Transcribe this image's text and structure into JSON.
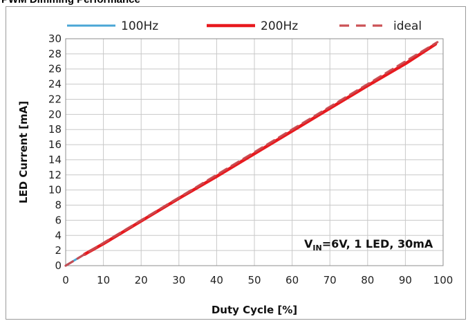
{
  "page": {
    "title": "PWM Dimming Performance"
  },
  "chart_data": {
    "type": "line",
    "title": "",
    "xlabel": "Duty Cycle [%]",
    "ylabel": "LED Current [mA]",
    "xlim": [
      0,
      100
    ],
    "ylim": [
      0,
      30
    ],
    "x_ticks": [
      0,
      10,
      20,
      30,
      40,
      50,
      60,
      70,
      80,
      90,
      100
    ],
    "y_ticks": [
      0,
      2,
      4,
      6,
      8,
      10,
      12,
      14,
      16,
      18,
      20,
      22,
      24,
      26,
      28,
      30
    ],
    "grid": true,
    "legend_position": "top",
    "annotation": {
      "main": "V",
      "sub": "IN",
      "rest": "=6V, 1 LED, 30mA"
    },
    "series": [
      {
        "name": "100Hz",
        "color": "#4aa6d6",
        "style": "solid",
        "x": [
          0,
          2,
          5,
          10,
          20,
          30,
          40,
          50,
          60,
          70,
          80,
          90,
          98
        ],
        "y": [
          0.0,
          0.6,
          1.5,
          2.9,
          5.9,
          8.9,
          11.8,
          14.8,
          17.8,
          20.8,
          23.8,
          26.7,
          29.3
        ]
      },
      {
        "name": "200Hz",
        "color": "#e8191e",
        "style": "solid",
        "x": [
          5,
          10,
          20,
          30,
          40,
          50,
          60,
          70,
          80,
          90,
          98
        ],
        "y": [
          1.5,
          2.9,
          5.9,
          8.9,
          11.8,
          14.8,
          17.8,
          20.8,
          23.8,
          26.7,
          29.3
        ]
      },
      {
        "name": "ideal",
        "color": "#c9494e",
        "style": "dashed",
        "x": [
          0,
          98.5
        ],
        "y": [
          0,
          29.55
        ]
      }
    ]
  }
}
